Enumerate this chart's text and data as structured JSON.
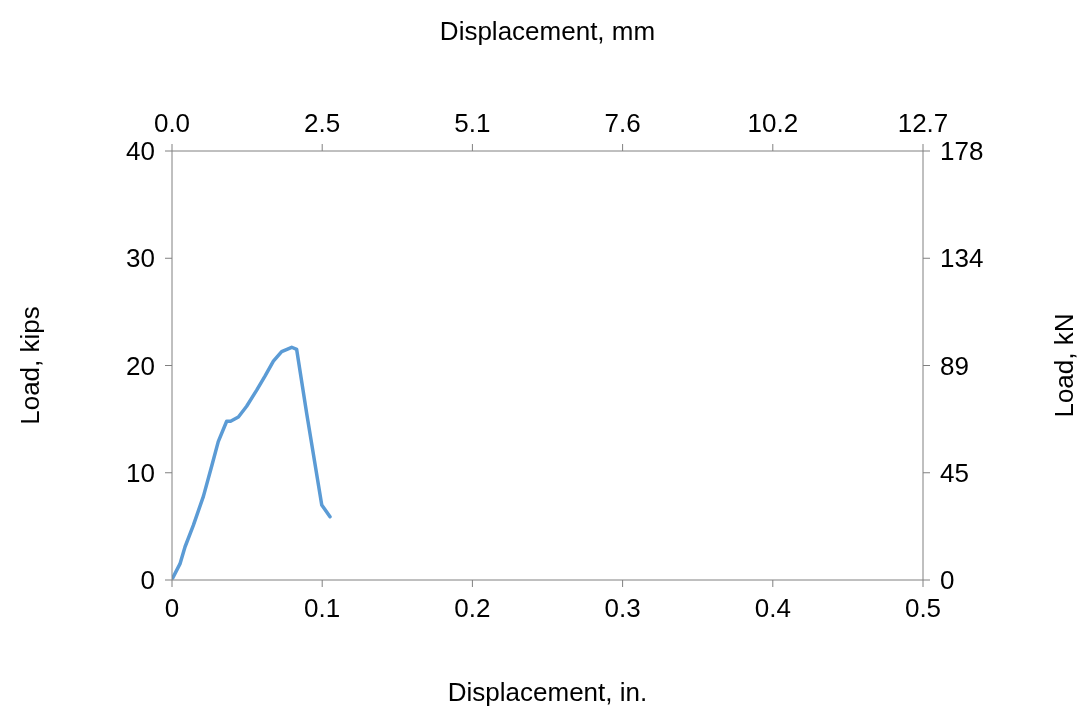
{
  "chart_data": {
    "type": "line",
    "xlabel": "Displacement, in.",
    "x2label": "Displacement, mm",
    "ylabel": "Load, kips",
    "y2label": "Load, kN",
    "x": [
      0.0005,
      0.0053,
      0.0087,
      0.0142,
      0.0209,
      0.0264,
      0.0308,
      0.0364,
      0.039,
      0.0442,
      0.0497,
      0.0564,
      0.0619,
      0.0675,
      0.073,
      0.0797,
      0.083,
      0.0897,
      0.0997,
      0.1052
    ],
    "series": [
      {
        "color": "#5b9bd5",
        "values": [
          0.2,
          1.5,
          3.1,
          5.1,
          7.8,
          10.6,
          12.9,
          14.8,
          14.8,
          15.2,
          16.2,
          17.7,
          19.0,
          20.4,
          21.3,
          21.7,
          21.5,
          15.5,
          7.0,
          5.9
        ]
      }
    ],
    "xlim": [
      0,
      0.5
    ],
    "xticks": [
      0,
      0.1,
      0.2,
      0.3,
      0.4,
      0.5
    ],
    "x2lim": [
      0,
      12.7
    ],
    "x2ticks": [
      {
        "value": 0,
        "label": "0.0"
      },
      {
        "value": 2.54,
        "label": "2.5"
      },
      {
        "value": 5.08,
        "label": "5.1"
      },
      {
        "value": 7.62,
        "label": "7.6"
      },
      {
        "value": 10.16,
        "label": "10.2"
      },
      {
        "value": 12.7,
        "label": "12.7"
      }
    ],
    "ylim": [
      0,
      40
    ],
    "yticks": [
      0,
      10,
      20,
      30,
      40
    ],
    "y2lim": [
      0,
      178
    ],
    "y2ticks": [
      0,
      {
        "value": 44.5,
        "label": "45"
      },
      89,
      {
        "value": 133.5,
        "label": "134"
      },
      178
    ],
    "grid": false,
    "marker": "none",
    "line_style": "solid"
  }
}
